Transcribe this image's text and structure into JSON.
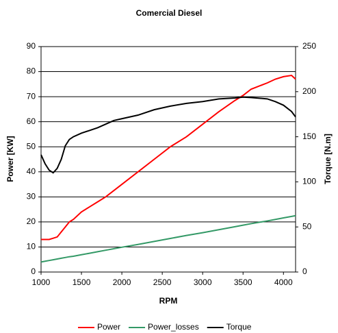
{
  "chart_data": {
    "type": "line",
    "title": "Comercial Diesel",
    "xlabel": "RPM",
    "ylabel": "Power [KW]",
    "y2label": "Torque [N.m]",
    "x": [
      1000,
      1050,
      1100,
      1150,
      1200,
      1250,
      1300,
      1350,
      1400,
      1500,
      1600,
      1700,
      1800,
      1900,
      2000,
      2200,
      2400,
      2600,
      2800,
      3000,
      3200,
      3400,
      3500,
      3600,
      3800,
      3900,
      4000,
      4100,
      4150
    ],
    "series": [
      {
        "name": "Power",
        "color": "#ff0000",
        "values": [
          13,
          13,
          13,
          13.5,
          14,
          16,
          18,
          20,
          21,
          24,
          26,
          28,
          30,
          32.5,
          35,
          40,
          45,
          50,
          54,
          59,
          64,
          68.5,
          70.5,
          73,
          75.5,
          77,
          78,
          78.5,
          77
        ]
      },
      {
        "name": "Power_losses",
        "color": "#339966",
        "values": [
          4,
          4.3,
          4.6,
          4.9,
          5.2,
          5.5,
          5.8,
          6.1,
          6.3,
          6.9,
          7.5,
          8.1,
          8.7,
          9.3,
          9.9,
          11,
          12.2,
          13.4,
          14.6,
          15.7,
          16.9,
          18.1,
          18.7,
          19.3,
          20.4,
          21,
          21.6,
          22.2,
          22.5
        ]
      },
      {
        "name": "Torque",
        "color": "#000000",
        "axis": "y2",
        "values": [
          130,
          120,
          113,
          110,
          115,
          125,
          140,
          147,
          150,
          154,
          157,
          160,
          164,
          168,
          170,
          174,
          180,
          184,
          187,
          189,
          192,
          193,
          194,
          193.5,
          192,
          189,
          185,
          178,
          172
        ]
      }
    ],
    "xlim": [
      1000,
      4150
    ],
    "xticks": [
      1000,
      1500,
      2000,
      2500,
      3000,
      3500,
      4000
    ],
    "ylim": [
      0,
      90
    ],
    "yticks": [
      0,
      10,
      20,
      30,
      40,
      50,
      60,
      70,
      80,
      90
    ],
    "y2lim": [
      0,
      250
    ],
    "y2ticks": [
      0,
      50,
      100,
      150,
      200,
      250
    ],
    "grid": true,
    "legend": "bottom"
  }
}
